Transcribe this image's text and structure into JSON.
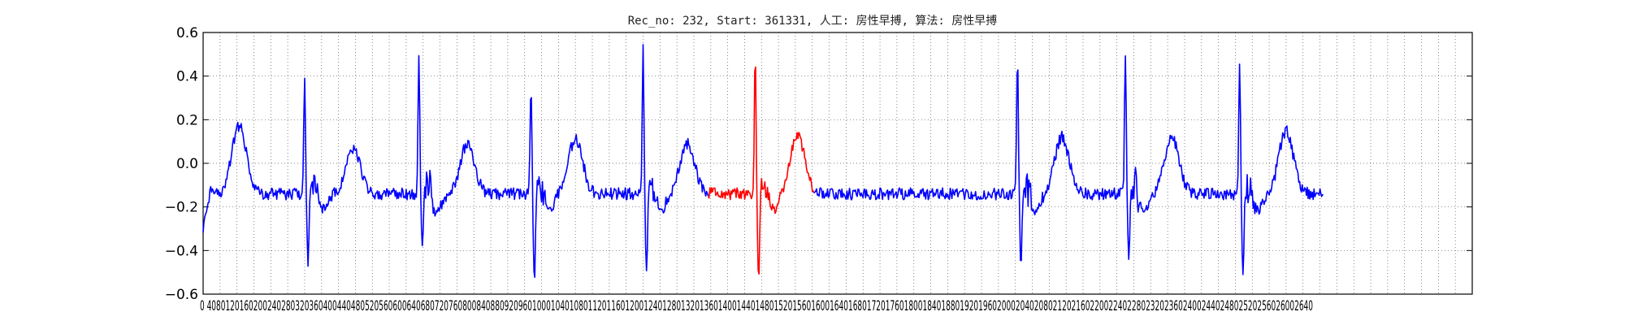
{
  "chart_data": {
    "type": "line",
    "title": "Rec_no: 232, Start: 361331, 人工: 房性早搏, 算法: 房性早搏",
    "xlabel": "",
    "ylabel": "",
    "xlim": [
      0,
      3000
    ],
    "ylim": [
      -0.6,
      0.6
    ],
    "yticks": [
      -0.6,
      -0.4,
      -0.2,
      0.0,
      0.2,
      0.4,
      0.6
    ],
    "ytick_labels": [
      "−0.6",
      "−0.4",
      "−0.2",
      "0.0",
      "0.2",
      "0.4",
      "0.6"
    ],
    "xtick_step": 40,
    "xtick_labels_text": "0 4080120160200240280320360400440480520560600640680720760800840880920960100010401080112011601200124012801320136014001440148015201560160016401680172017601800184018801920196020002040208021202160220022402280232023602400244024802520256026002640",
    "grid": true,
    "grid_style": "dotted",
    "colors": {
      "normal": "#0000ff",
      "highlight": "#ff0000"
    },
    "highlight_range": [
      1195,
      1445
    ],
    "signal": {
      "length": 2650,
      "baseline": -0.14,
      "r_peaks": [
        {
          "x": 240,
          "amp": 0.41,
          "s": -0.46
        },
        {
          "x": 510,
          "amp": 0.51,
          "s": -0.39
        },
        {
          "x": 775,
          "amp": 0.36,
          "s": -0.55
        },
        {
          "x": 1040,
          "amp": 0.54,
          "s": -0.51
        },
        {
          "x": 1305,
          "amp": 0.53,
          "s": -0.54
        },
        {
          "x": 1925,
          "amp": 0.5,
          "s": -0.48
        },
        {
          "x": 2180,
          "amp": 0.51,
          "s": -0.43
        },
        {
          "x": 2450,
          "amp": 0.47,
          "s": -0.53
        }
      ],
      "t_waves": [
        {
          "x": 85,
          "amp": 0.17
        },
        {
          "x": 355,
          "amp": 0.06
        },
        {
          "x": 625,
          "amp": 0.09
        },
        {
          "x": 880,
          "amp": 0.11
        },
        {
          "x": 1145,
          "amp": 0.09
        },
        {
          "x": 1405,
          "amp": 0.13
        },
        {
          "x": 2030,
          "amp": 0.12
        },
        {
          "x": 2290,
          "amp": 0.12
        },
        {
          "x": 2560,
          "amp": 0.15
        }
      ]
    }
  }
}
